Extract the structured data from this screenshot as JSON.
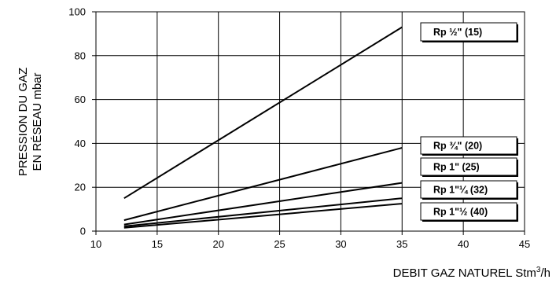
{
  "chart_data": {
    "type": "line",
    "title": "",
    "xlabel": "DEBIT GAZ NATUREL Stm",
    "xlabel_sup": "3",
    "xlabel_suffix": "/h",
    "ylabel_line1": "PRESSION DU GAZ",
    "ylabel_line2": "EN RÉSEAU mbar",
    "xlim": [
      10,
      45
    ],
    "ylim": [
      0,
      100
    ],
    "x_ticks": [
      "10",
      "15",
      "20",
      "25",
      "30",
      "35",
      "40",
      "45"
    ],
    "y_ticks": [
      "0",
      "20",
      "40",
      "60",
      "80",
      "100"
    ],
    "grid": true,
    "legend_placement": "right",
    "series": [
      {
        "name": "Rp ½\" (15)",
        "x": [
          12.3,
          35
        ],
        "y": [
          15,
          93
        ],
        "color": "#000000"
      },
      {
        "name": "Rp ¾\" (20)",
        "x": [
          12.3,
          35
        ],
        "y": [
          5,
          38
        ],
        "color": "#000000"
      },
      {
        "name": "Rp 1\" (25)",
        "x": [
          12.3,
          35
        ],
        "y": [
          3,
          22
        ],
        "color": "#000000"
      },
      {
        "name": "Rp 1\"¼ (32)",
        "x": [
          12.3,
          35
        ],
        "y": [
          2.2,
          15
        ],
        "color": "#000000"
      },
      {
        "name": "Rp 1\"½ (40)",
        "x": [
          12.3,
          35
        ],
        "y": [
          1.5,
          12.5
        ],
        "color": "#000000"
      }
    ]
  }
}
